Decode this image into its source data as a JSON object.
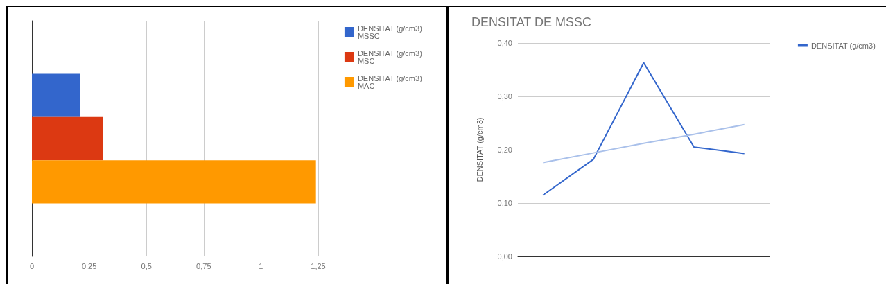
{
  "chart_data": [
    {
      "type": "bar",
      "orientation": "horizontal",
      "categories": [
        null
      ],
      "series": [
        {
          "name": "DENSITAT (g/cm3) MSSC",
          "color": "#3366cc",
          "values": [
            0.21
          ]
        },
        {
          "name": "DENSITAT (g/cm3) MSC",
          "color": "#dc3912",
          "values": [
            0.31
          ]
        },
        {
          "name": "DENSITAT (g/cm3) MAC",
          "color": "#ff9900",
          "values": [
            1.24
          ]
        }
      ],
      "xlim": [
        0,
        1.25
      ],
      "xticks": [
        0,
        {
          "value": 0.25,
          "label": "0,25"
        },
        {
          "value": 0.5,
          "label": "0,5"
        },
        {
          "value": 0.75,
          "label": "0,75"
        },
        1,
        {
          "value": 1.25,
          "label": "1,25"
        }
      ],
      "grid": "x",
      "legend": "top right"
    },
    {
      "type": "line",
      "title": "DENSITAT DE MSSC",
      "ylabel": "DENSITAT (g/cm3)",
      "categories": [
        null,
        null,
        null,
        null,
        null
      ],
      "series": [
        {
          "name": "DENSITAT (g/cm3)",
          "color": "#3366cc",
          "values": [
            0.115,
            0.182,
            0.363,
            0.205,
            0.193
          ]
        },
        {
          "color": "#a9c0ea",
          "values": [
            0.176,
            0.194,
            0.212,
            0.229,
            0.247
          ]
        }
      ],
      "ylim": [
        0,
        0.4
      ],
      "yticks": [
        {
          "value": 0,
          "label": "0,00"
        },
        {
          "value": 0.1,
          "label": "0,10"
        },
        {
          "value": 0.2,
          "label": "0,20"
        },
        {
          "value": 0.3,
          "label": "0,30"
        },
        {
          "value": 0.4,
          "label": "0,40"
        }
      ],
      "grid": "y",
      "legend": "top right",
      "marker": "none",
      "line_style": "solid"
    }
  ]
}
